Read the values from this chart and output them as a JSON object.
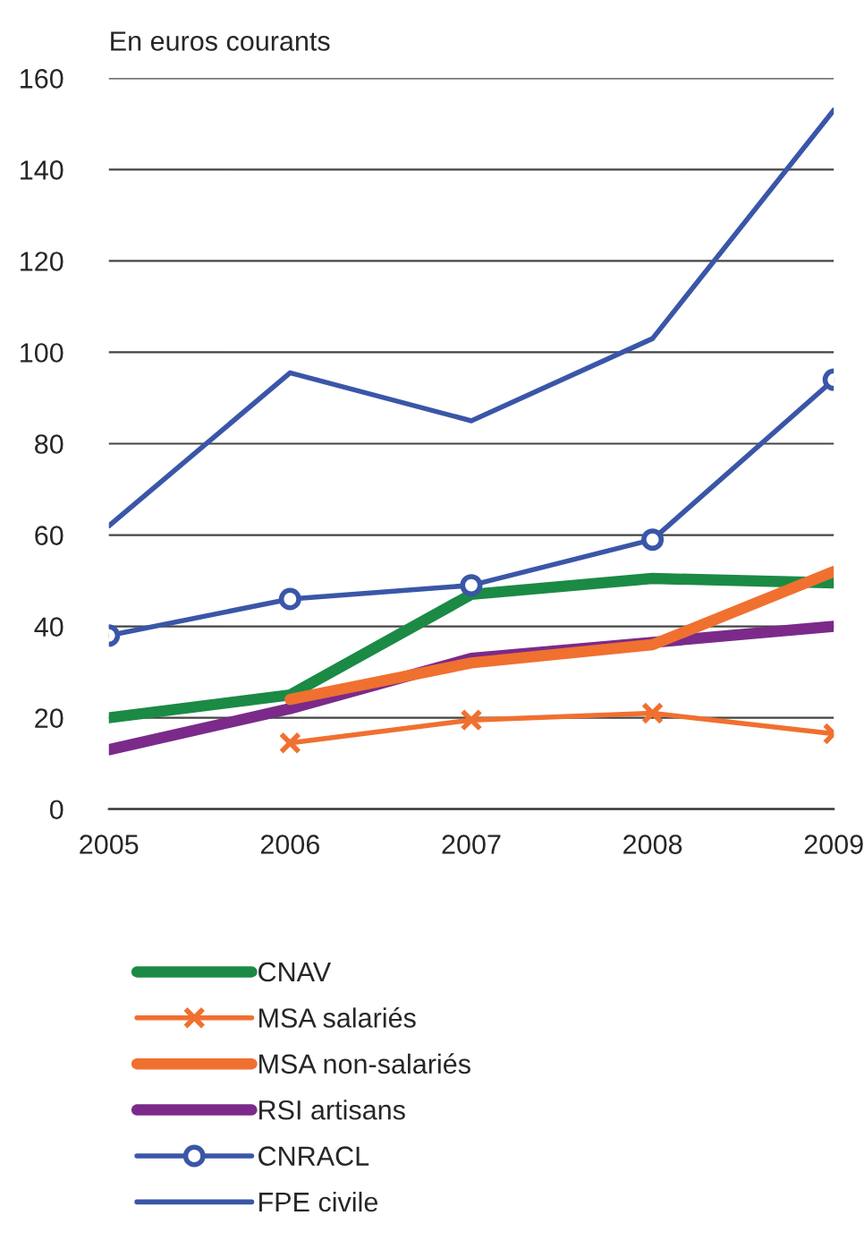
{
  "chart_data": {
    "type": "line",
    "ylabel": "En euros courants",
    "x": [
      2005,
      2006,
      2007,
      2008,
      2009
    ],
    "xlim": [
      2005,
      2009
    ],
    "xticks": [
      2005,
      2006,
      2007,
      2008,
      2009
    ],
    "ylim": [
      0,
      160
    ],
    "yticks": [
      0,
      20,
      40,
      60,
      80,
      100,
      120,
      140,
      160
    ],
    "grid": "y",
    "legend": "bottom",
    "series": [
      {
        "name": "CNAV",
        "color": "#1b8a45",
        "marker": "none",
        "values": [
          20,
          25,
          47,
          50.5,
          49.5
        ]
      },
      {
        "name": "MSA salariés",
        "color": "#f07030",
        "marker": "cross",
        "values": [
          null,
          14.5,
          19.5,
          21,
          16.5
        ]
      },
      {
        "name": "MSA non-salariés",
        "color": "#f07030",
        "marker": "none",
        "values": [
          null,
          24,
          32,
          36,
          52
        ]
      },
      {
        "name": "RSI artisans",
        "color": "#7b2a8a",
        "marker": "none",
        "values": [
          13,
          22,
          33,
          36.5,
          40
        ]
      },
      {
        "name": "CNRACL",
        "color": "#3a56a8",
        "marker": "circle",
        "values": [
          38,
          46,
          49,
          59,
          94
        ]
      },
      {
        "name": "FPE civile",
        "color": "#3a56a8",
        "marker": "none",
        "values": [
          62,
          95.5,
          85,
          103,
          153
        ]
      }
    ]
  }
}
